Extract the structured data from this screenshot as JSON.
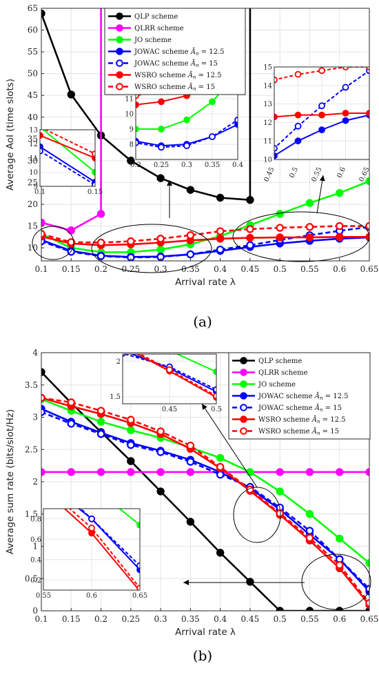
{
  "chart_data": [
    {
      "type": "line",
      "label": "(a)",
      "xlabel": "Arrival rate λ",
      "ylabel": "Average AoI (time slots)",
      "x": [
        0.1,
        0.15,
        0.2,
        0.25,
        0.3,
        0.35,
        0.4,
        0.45,
        0.5,
        0.55,
        0.6,
        0.65
      ],
      "xlim": [
        0.1,
        0.65
      ],
      "ylim": [
        7,
        65
      ],
      "xticks": [
        "0.1",
        "0.15",
        "0.2",
        "0.25",
        "0.3",
        "0.35",
        "0.4",
        "0.45",
        "0.5",
        "0.55",
        "0.6",
        "0.65"
      ],
      "yticks": [
        "10",
        "15",
        "20",
        "25",
        "30",
        "35",
        "40",
        "45",
        "50",
        "55",
        "60",
        "65"
      ],
      "legend_position": "top-center",
      "grid": true,
      "series": [
        {
          "name": "QLP scheme",
          "color": "#000000",
          "dash": false,
          "filled": true,
          "x": [
            0.1,
            0.15,
            0.2,
            0.25,
            0.3,
            0.35,
            0.4,
            0.45
          ],
          "values": [
            63.8,
            45.2,
            35.8,
            30.0,
            26.0,
            23.3,
            21.5,
            21.0
          ],
          "tail": "up"
        },
        {
          "name": "QLRR scheme",
          "color": "#ff00ff",
          "dash": false,
          "filled": true,
          "x": [
            0.1,
            0.15,
            0.2
          ],
          "values": [
            15.8,
            14.0,
            17.8
          ],
          "tail": "up"
        },
        {
          "name": "JO scheme",
          "color": "#00ff00",
          "dash": false,
          "filled": true,
          "x": [
            0.1,
            0.15,
            0.2,
            0.25,
            0.3,
            0.35,
            0.4,
            0.45,
            0.5,
            0.55,
            0.6,
            0.65
          ],
          "values": [
            13.2,
            10.0,
            9.0,
            9.0,
            9.6,
            10.8,
            12.7,
            15.2,
            17.8,
            20.3,
            22.6,
            25.3
          ]
        },
        {
          "name": "JOWAC scheme Ā_n = 12.5",
          "color": "#0000ff",
          "dash": false,
          "filled": true,
          "x": [
            0.1,
            0.15,
            0.2,
            0.25,
            0.3,
            0.35,
            0.4,
            0.45,
            0.5,
            0.55,
            0.6,
            0.65
          ],
          "values": [
            11.8,
            9.3,
            8.2,
            7.9,
            8.0,
            8.5,
            9.3,
            10.2,
            11.0,
            11.6,
            12.1,
            12.4
          ]
        },
        {
          "name": "JOWAC scheme Ā_n = 15",
          "color": "#0000ff",
          "dash": true,
          "filled": false,
          "x": [
            0.1,
            0.15,
            0.2,
            0.25,
            0.3,
            0.35,
            0.4,
            0.45,
            0.5,
            0.55,
            0.6,
            0.65
          ],
          "values": [
            11.5,
            9.1,
            8.1,
            7.8,
            7.9,
            8.5,
            9.6,
            10.6,
            11.8,
            12.9,
            13.9,
            14.8
          ]
        },
        {
          "name": "WSRO scheme Ā_n = 12.5",
          "color": "#ff0000",
          "dash": false,
          "filled": true,
          "x": [
            0.1,
            0.15,
            0.2,
            0.25,
            0.3,
            0.35,
            0.4,
            0.45,
            0.5,
            0.55,
            0.6,
            0.65
          ],
          "values": [
            12.6,
            11.0,
            10.6,
            10.8,
            11.2,
            11.7,
            12.1,
            12.3,
            12.4,
            12.4,
            12.5,
            12.5
          ]
        },
        {
          "name": "WSRO scheme Ā_n = 15",
          "color": "#ff0000",
          "dash": true,
          "filled": false,
          "x": [
            0.1,
            0.15,
            0.2,
            0.25,
            0.3,
            0.35,
            0.4,
            0.45,
            0.5,
            0.55,
            0.6,
            0.65
          ],
          "values": [
            13.2,
            11.3,
            11.2,
            11.5,
            12.1,
            12.9,
            13.8,
            14.3,
            14.6,
            14.8,
            15.0,
            15.0
          ]
        }
      ],
      "insets": [
        {
          "xlim": [
            0.1,
            0.15
          ],
          "ylim": [
            9,
            13
          ],
          "xticks": [
            "0.1",
            "0.15"
          ],
          "yticks": [
            "9",
            "10",
            "11",
            "12",
            "13"
          ]
        },
        {
          "xlim": [
            0.2,
            0.4
          ],
          "ylim": [
            7,
            12
          ],
          "xticks": [
            "0.2",
            "0.25",
            "0.3",
            "0.35",
            "0.4"
          ],
          "yticks": [
            "7",
            "8",
            "9",
            "10",
            "11",
            "12"
          ]
        },
        {
          "xlim": [
            0.45,
            0.65
          ],
          "ylim": [
            10,
            15
          ],
          "xticks": [
            "0.45",
            "0.5",
            "0.55",
            "0.6",
            "0.65"
          ],
          "yticks": [
            "10",
            "11",
            "12",
            "13",
            "14",
            "15"
          ]
        }
      ]
    },
    {
      "type": "line",
      "label": "(b)",
      "xlabel": "Arrival rate λ",
      "ylabel": "Average sum rate (bits/slot/Hz)",
      "x": [
        0.1,
        0.15,
        0.2,
        0.25,
        0.3,
        0.35,
        0.4,
        0.45,
        0.5,
        0.55,
        0.6,
        0.65
      ],
      "xlim": [
        0.1,
        0.65
      ],
      "ylim": [
        0,
        4
      ],
      "xticks": [
        "0.1",
        "0.15",
        "0.2",
        "0.25",
        "0.3",
        "0.35",
        "0.4",
        "0.45",
        "0.5",
        "0.55",
        "0.6",
        "0.65"
      ],
      "yticks": [
        "0",
        "0.5",
        "1",
        "1.5",
        "2",
        "2.5",
        "3",
        "3.5",
        "4"
      ],
      "legend_position": "top-right",
      "grid": true,
      "series": [
        {
          "name": "QLP scheme",
          "color": "#000000",
          "dash": false,
          "filled": true,
          "x": [
            0.1,
            0.15,
            0.2,
            0.25,
            0.3,
            0.35,
            0.4,
            0.45,
            0.5,
            0.55,
            0.6,
            0.65
          ],
          "values": [
            3.7,
            3.22,
            2.77,
            2.32,
            1.85,
            1.38,
            0.9,
            0.45,
            0,
            0,
            0,
            0
          ]
        },
        {
          "name": "QLRR scheme",
          "color": "#ff00ff",
          "dash": false,
          "filled": true,
          "x": [
            0.1,
            0.15,
            0.2,
            0.25,
            0.3,
            0.35,
            0.4,
            0.45,
            0.5,
            0.55,
            0.6,
            0.65
          ],
          "values": [
            2.15,
            2.15,
            2.15,
            2.15,
            2.15,
            2.15,
            2.15,
            2.15,
            2.15,
            2.15,
            2.15,
            2.15
          ]
        },
        {
          "name": "JO scheme",
          "color": "#00ff00",
          "dash": false,
          "filled": true,
          "x": [
            0.1,
            0.15,
            0.2,
            0.25,
            0.3,
            0.35,
            0.4,
            0.45,
            0.5,
            0.55,
            0.6,
            0.65
          ],
          "values": [
            3.28,
            3.1,
            2.93,
            2.8,
            2.68,
            2.53,
            2.37,
            2.15,
            1.85,
            1.5,
            1.12,
            0.74
          ]
        },
        {
          "name": "JOWAC scheme Ā_n = 12.5",
          "color": "#0000ff",
          "dash": false,
          "filled": true,
          "x": [
            0.1,
            0.15,
            0.2,
            0.25,
            0.3,
            0.35,
            0.4,
            0.45,
            0.5,
            0.55,
            0.6,
            0.65
          ],
          "values": [
            3.13,
            2.93,
            2.76,
            2.6,
            2.48,
            2.34,
            2.15,
            1.9,
            1.57,
            1.18,
            0.8,
            0.3
          ]
        },
        {
          "name": "JOWAC scheme Ā_n = 15",
          "color": "#0000ff",
          "dash": true,
          "filled": false,
          "x": [
            0.1,
            0.15,
            0.2,
            0.25,
            0.3,
            0.35,
            0.4,
            0.45,
            0.5,
            0.55,
            0.6,
            0.65
          ],
          "values": [
            3.08,
            2.9,
            2.74,
            2.57,
            2.46,
            2.31,
            2.11,
            1.92,
            1.6,
            1.24,
            0.8,
            0.34
          ]
        },
        {
          "name": "WSRO scheme Ā_n = 12.5",
          "color": "#ff0000",
          "dash": false,
          "filled": true,
          "x": [
            0.1,
            0.15,
            0.2,
            0.25,
            0.3,
            0.35,
            0.4,
            0.45,
            0.5,
            0.55,
            0.6,
            0.65
          ],
          "values": [
            3.3,
            3.17,
            3.05,
            2.91,
            2.74,
            2.51,
            2.21,
            1.86,
            1.49,
            1.09,
            0.66,
            0.09
          ]
        },
        {
          "name": "WSRO scheme Ā_n = 15",
          "color": "#ff0000",
          "dash": true,
          "filled": false,
          "x": [
            0.1,
            0.15,
            0.2,
            0.25,
            0.3,
            0.35,
            0.4,
            0.45,
            0.5,
            0.55,
            0.6,
            0.65
          ],
          "values": [
            3.3,
            3.23,
            3.1,
            2.96,
            2.78,
            2.56,
            2.23,
            1.88,
            1.51,
            1.13,
            0.71,
            0.12
          ]
        }
      ],
      "insets": [
        {
          "xlim": [
            0.4,
            0.5
          ],
          "ylim": [
            1.4,
            2.1
          ],
          "xticks": [
            "0.45",
            "0.5"
          ],
          "yticks": [
            "1.5",
            "2"
          ]
        },
        {
          "xlim": [
            0.55,
            0.65
          ],
          "ylim": [
            0.1,
            0.9
          ],
          "xticks": [
            "0.55",
            "0.6",
            "0.65"
          ],
          "yticks": [
            "0.2",
            "0.4",
            "0.6",
            "0.8"
          ]
        }
      ]
    }
  ]
}
